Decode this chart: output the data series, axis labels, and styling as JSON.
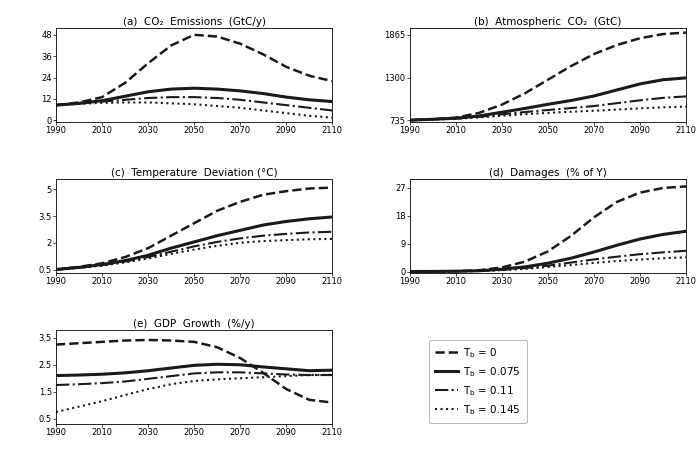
{
  "years": [
    1990,
    2000,
    2010,
    2020,
    2030,
    2040,
    2050,
    2060,
    2070,
    2080,
    2090,
    2100,
    2110
  ],
  "titles": [
    "(a)  CO₂  Emissions  (GtC/y)",
    "(b)  Atmospheric  CO₂  (GtC)",
    "(c)  Temperature  Deviation (°C)",
    "(d)  Damages  (% of Y)",
    "(e)  GDP  Growth  (%/y)"
  ],
  "co2_emissions": {
    "dashed": [
      8.5,
      10.0,
      13.0,
      21.0,
      32.0,
      42.0,
      48.0,
      47.0,
      43.0,
      37.0,
      30.0,
      25.0,
      22.0
    ],
    "solid": [
      8.5,
      9.5,
      11.0,
      13.5,
      16.0,
      17.5,
      18.0,
      17.5,
      16.5,
      15.0,
      13.0,
      11.5,
      10.5
    ],
    "dashdot": [
      8.5,
      9.5,
      10.5,
      11.5,
      12.5,
      13.0,
      13.0,
      12.5,
      11.5,
      10.0,
      8.5,
      7.0,
      5.5
    ],
    "dotted": [
      8.5,
      9.2,
      9.8,
      10.0,
      10.0,
      9.5,
      9.0,
      8.0,
      7.0,
      5.5,
      4.0,
      2.5,
      1.5
    ]
  },
  "atm_co2": {
    "dashed": [
      735,
      748,
      768,
      830,
      940,
      1090,
      1270,
      1450,
      1610,
      1730,
      1820,
      1875,
      1895
    ],
    "solid": [
      735,
      747,
      760,
      790,
      840,
      890,
      945,
      995,
      1055,
      1135,
      1215,
      1270,
      1295
    ],
    "dashdot": [
      735,
      746,
      757,
      778,
      812,
      842,
      870,
      895,
      922,
      960,
      998,
      1030,
      1050
    ],
    "dotted": [
      735,
      745,
      754,
      771,
      794,
      814,
      832,
      846,
      860,
      875,
      892,
      905,
      915
    ]
  },
  "temperature": {
    "dashed": [
      0.5,
      0.65,
      0.85,
      1.2,
      1.7,
      2.4,
      3.1,
      3.8,
      4.3,
      4.7,
      4.9,
      5.05,
      5.1
    ],
    "solid": [
      0.5,
      0.62,
      0.78,
      1.0,
      1.3,
      1.7,
      2.05,
      2.4,
      2.7,
      3.0,
      3.2,
      3.35,
      3.45
    ],
    "dashdot": [
      0.5,
      0.6,
      0.74,
      0.95,
      1.2,
      1.5,
      1.8,
      2.05,
      2.25,
      2.4,
      2.5,
      2.58,
      2.62
    ],
    "dotted": [
      0.5,
      0.59,
      0.72,
      0.9,
      1.12,
      1.38,
      1.62,
      1.83,
      2.0,
      2.1,
      2.15,
      2.2,
      2.22
    ]
  },
  "damages": {
    "dashed": [
      0.0,
      0.04,
      0.12,
      0.4,
      1.3,
      3.2,
      6.5,
      11.5,
      17.5,
      22.5,
      25.5,
      27.0,
      27.5
    ],
    "solid": [
      0.0,
      0.04,
      0.1,
      0.25,
      0.75,
      1.5,
      2.7,
      4.3,
      6.3,
      8.5,
      10.5,
      12.0,
      13.0
    ],
    "dashdot": [
      0.0,
      0.03,
      0.08,
      0.2,
      0.55,
      1.1,
      1.9,
      2.9,
      3.9,
      4.8,
      5.6,
      6.2,
      6.7
    ],
    "dotted": [
      0.0,
      0.03,
      0.07,
      0.17,
      0.45,
      0.85,
      1.45,
      2.1,
      2.8,
      3.4,
      3.9,
      4.3,
      4.6
    ]
  },
  "gdp_growth": {
    "dashed": [
      3.25,
      3.3,
      3.35,
      3.4,
      3.42,
      3.4,
      3.35,
      3.15,
      2.75,
      2.2,
      1.6,
      1.2,
      1.1
    ],
    "solid": [
      2.1,
      2.12,
      2.15,
      2.2,
      2.28,
      2.38,
      2.48,
      2.52,
      2.5,
      2.42,
      2.35,
      2.28,
      2.3
    ],
    "dashdot": [
      1.75,
      1.78,
      1.82,
      1.88,
      1.98,
      2.08,
      2.18,
      2.22,
      2.22,
      2.18,
      2.14,
      2.12,
      2.12
    ],
    "dotted": [
      0.75,
      0.95,
      1.15,
      1.38,
      1.6,
      1.78,
      1.9,
      1.96,
      2.0,
      2.04,
      2.08,
      2.12,
      2.13
    ]
  },
  "co2_yticks": [
    0,
    12,
    24,
    36,
    48
  ],
  "co2_ylim": [
    -1,
    52
  ],
  "atm_co2_yticks": [
    735,
    1300,
    1865
  ],
  "atm_co2_ylim": [
    710,
    1960
  ],
  "temp_yticks": [
    0.5,
    2,
    3.5,
    5
  ],
  "temp_ylim": [
    0.3,
    5.6
  ],
  "damages_yticks": [
    0,
    9,
    18,
    27
  ],
  "damages_ylim": [
    -0.5,
    30
  ],
  "gdp_yticks": [
    0.5,
    1.5,
    2.5,
    3.5
  ],
  "gdp_ylim": [
    0.3,
    3.8
  ],
  "line_color": "#1a1a1a",
  "bg_color": "#ffffff",
  "legend_entries": [
    {
      "linestyle": "--",
      "lw": 1.8,
      "label": "T_b = 0"
    },
    {
      "linestyle": "-",
      "lw": 2.2,
      "label": "T_b = 0.075"
    },
    {
      "linestyle": "-.",
      "lw": 1.5,
      "label": "T_b = 0.11"
    },
    {
      "linestyle": ":",
      "lw": 1.5,
      "label": "T_b = 0.145"
    }
  ]
}
